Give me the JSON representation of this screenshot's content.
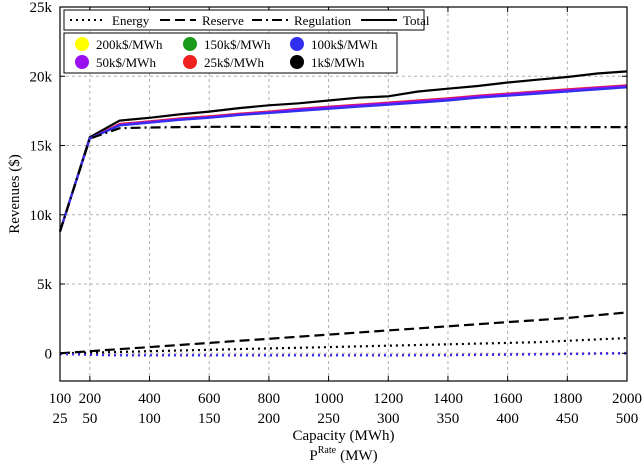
{
  "chart_data": {
    "type": "line",
    "title": "",
    "xlabel": "Capacity (MWh)",
    "x2label": {
      "main": "P",
      "sup": "Rate",
      "unit": "(MW)"
    },
    "ylabel": "Revenues ($)",
    "xlim": [
      100,
      2000
    ],
    "ylim": [
      -2000,
      25000
    ],
    "grid": true,
    "legend_position": "top-left",
    "x_ticks": [
      100,
      200,
      400,
      600,
      800,
      1000,
      1200,
      1400,
      1600,
      1800,
      2000
    ],
    "x_tick_labels": [
      "100",
      "200",
      "400",
      "600",
      "800",
      "1000",
      "1200",
      "1400",
      "1600",
      "1800",
      "2000"
    ],
    "x2_tick_labels": [
      "25",
      "50",
      "100",
      "150",
      "200",
      "250",
      "300",
      "350",
      "400",
      "450",
      "500"
    ],
    "y_ticks": [
      0,
      5000,
      10000,
      15000,
      20000,
      25000
    ],
    "y_tick_labels": [
      "0",
      "5k",
      "10k",
      "15k",
      "20k",
      "25k"
    ],
    "x": [
      100,
      200,
      300,
      400,
      500,
      600,
      700,
      800,
      900,
      1000,
      1100,
      1200,
      1300,
      1400,
      1500,
      1600,
      1700,
      1800,
      1900,
      2000
    ],
    "styles": [
      {
        "name": "Energy",
        "dash": "dotted"
      },
      {
        "name": "Reserve",
        "dash": "dashed"
      },
      {
        "name": "Regulation",
        "dash": "dashdot"
      },
      {
        "name": "Total",
        "dash": "solid"
      }
    ],
    "cases": [
      {
        "name": "200k$/MWh",
        "color": "#ffff00"
      },
      {
        "name": "150k$/MWh",
        "color": "#1a9a1a"
      },
      {
        "name": "100k$/MWh",
        "color": "#3030ee"
      },
      {
        "name": "50k$/MWh",
        "color": "#9a10ee"
      },
      {
        "name": "25k$/MWh",
        "color": "#ee2020"
      },
      {
        "name": "1k$/MWh",
        "color": "#000000"
      }
    ],
    "series": [
      {
        "name": "Total",
        "case": "1k$/MWh",
        "dash": "solid",
        "color": "#000000",
        "values": [
          8800,
          15600,
          16800,
          17000,
          17250,
          17450,
          17700,
          17900,
          18050,
          18250,
          18450,
          18550,
          18900,
          19100,
          19300,
          19550,
          19750,
          19950,
          20200,
          20350
        ]
      },
      {
        "name": "Total",
        "case": "25k$/MWh",
        "dash": "solid",
        "color": "#ee2020",
        "values": [
          8800,
          15500,
          16550,
          16750,
          16950,
          17100,
          17300,
          17450,
          17650,
          17800,
          17950,
          18100,
          18250,
          18400,
          18600,
          18750,
          18900,
          19050,
          19200,
          19350
        ]
      },
      {
        "name": "Total",
        "case": "50k$/MWh",
        "dash": "solid",
        "color": "#9a10ee",
        "values": [
          8800,
          15500,
          16500,
          16700,
          16900,
          17050,
          17250,
          17400,
          17600,
          17750,
          17900,
          18050,
          18200,
          18350,
          18550,
          18700,
          18850,
          19000,
          19150,
          19300
        ]
      },
      {
        "name": "Total",
        "case": "100k$/MWh",
        "dash": "solid",
        "color": "#3030ee",
        "values": [
          8800,
          15500,
          16450,
          16650,
          16850,
          17000,
          17200,
          17350,
          17500,
          17650,
          17800,
          17950,
          18100,
          18250,
          18450,
          18600,
          18750,
          18900,
          19050,
          19200
        ]
      },
      {
        "name": "Regulation",
        "case": "all",
        "dash": "dashdot",
        "color": "#000000",
        "values": [
          8800,
          15500,
          16250,
          16300,
          16330,
          16350,
          16350,
          16340,
          16330,
          16320,
          16320,
          16330,
          16330,
          16330,
          16330,
          16330,
          16330,
          16330,
          16330,
          16330
        ]
      },
      {
        "name": "Reserve",
        "case": "all",
        "dash": "dashed",
        "color": "#000000",
        "values": [
          0,
          150,
          300,
          450,
          600,
          750,
          900,
          1050,
          1200,
          1350,
          1500,
          1650,
          1800,
          1950,
          2100,
          2250,
          2400,
          2550,
          2750,
          2950
        ]
      },
      {
        "name": "Energy",
        "case": "1k$/MWh",
        "dash": "dotted",
        "color": "#000000",
        "values": [
          0,
          50,
          100,
          150,
          200,
          250,
          300,
          350,
          400,
          450,
          500,
          550,
          600,
          650,
          700,
          750,
          800,
          900,
          1000,
          1100
        ]
      },
      {
        "name": "Energy",
        "case": "25k$/MWh",
        "dash": "dotted",
        "color": "#ee2020",
        "values": [
          -50,
          -100,
          -150,
          -150,
          -150,
          -150,
          -150,
          -150,
          -150,
          -150,
          -150,
          -150,
          -130,
          -120,
          -100,
          -80,
          -50,
          -30,
          0,
          20
        ]
      },
      {
        "name": "Energy",
        "case": "50k$/MWh",
        "dash": "dotted",
        "color": "#9a10ee",
        "values": [
          -50,
          -100,
          -150,
          -150,
          -150,
          -150,
          -150,
          -150,
          -150,
          -150,
          -150,
          -150,
          -140,
          -130,
          -110,
          -90,
          -60,
          -40,
          -10,
          0
        ]
      },
      {
        "name": "Energy",
        "case": "100k$/MWh",
        "dash": "dotted",
        "color": "#3030ee",
        "values": [
          -50,
          -100,
          -150,
          -150,
          -150,
          -150,
          -150,
          -150,
          -150,
          -150,
          -150,
          -150,
          -140,
          -130,
          -120,
          -100,
          -80,
          -50,
          -30,
          -10
        ]
      }
    ]
  }
}
